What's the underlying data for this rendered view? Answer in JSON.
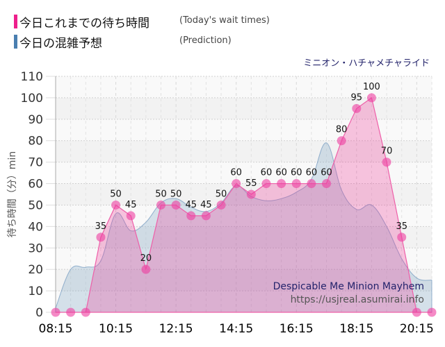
{
  "legend": [
    {
      "label_jp": "今日これまでの待ち時間",
      "label_en": "(Today's wait times)",
      "color": "#ee1f8c"
    },
    {
      "label_jp": "今日の混雑予想",
      "label_en": "(Prediction)",
      "color": "#4a7fb0"
    }
  ],
  "ride_name": "ミニオン・ハチャメチャライド",
  "watermark": {
    "title": "Despicable Me Minion Mayhem",
    "url": "https://usjreal.asumirai.info"
  },
  "chart_data": {
    "type": "area",
    "title": "ミニオン・ハチャメチャライド",
    "xlabel": "",
    "ylabel": "待ち時間（分）min",
    "ylim": [
      0,
      110
    ],
    "yticks": [
      0,
      10,
      20,
      30,
      40,
      50,
      60,
      70,
      80,
      90,
      100,
      110
    ],
    "xtick_labels": [
      "08:15",
      "10:15",
      "12:15",
      "14:15",
      "16:15",
      "18:15",
      "20:15"
    ],
    "grid": true,
    "legend_position": "top-left",
    "x": [
      "08:15",
      "08:45",
      "09:15",
      "09:45",
      "10:15",
      "10:45",
      "11:15",
      "11:45",
      "12:15",
      "12:45",
      "13:15",
      "13:45",
      "14:15",
      "14:45",
      "15:15",
      "15:45",
      "16:15",
      "16:45",
      "17:15",
      "17:45",
      "18:15",
      "18:45",
      "19:15",
      "19:45",
      "20:15",
      "20:45"
    ],
    "series": [
      {
        "name": "今日これまでの待ち時間 (Today's wait times)",
        "color": "#ee1f8c",
        "values": [
          0,
          0,
          0,
          35,
          50,
          45,
          20,
          50,
          50,
          45,
          45,
          50,
          60,
          55,
          60,
          60,
          60,
          60,
          60,
          80,
          95,
          100,
          70,
          35,
          0,
          0
        ],
        "labeled": [
          false,
          false,
          false,
          true,
          true,
          true,
          true,
          true,
          true,
          true,
          true,
          true,
          true,
          true,
          true,
          true,
          true,
          true,
          true,
          true,
          true,
          true,
          true,
          true,
          false,
          false
        ]
      },
      {
        "name": "今日の混雑予想 (Prediction)",
        "color": "#4a7fb0",
        "values": [
          2,
          20,
          21,
          24,
          46,
          38,
          42,
          51,
          53,
          49,
          47,
          51,
          59,
          54,
          52,
          53,
          56,
          62,
          79,
          57,
          48,
          50,
          40,
          25,
          16,
          15
        ]
      }
    ]
  }
}
